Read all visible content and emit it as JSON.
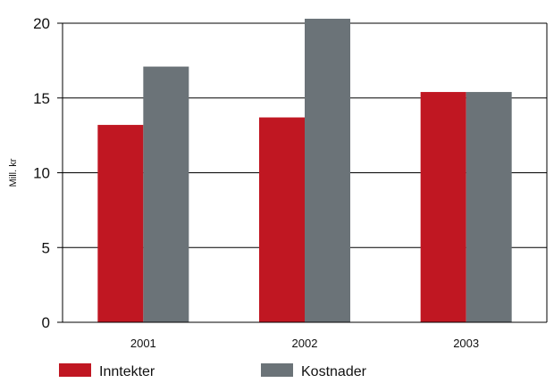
{
  "chart_data": {
    "type": "bar",
    "title": "",
    "xlabel": "",
    "ylabel": "Mill. kr",
    "categories": [
      "2001",
      "2002",
      "2003"
    ],
    "series": [
      {
        "name": "Inntekter",
        "values": [
          13.2,
          13.7,
          15.4
        ],
        "color": "#c01722"
      },
      {
        "name": "Kostnader",
        "values": [
          17.1,
          20.3,
          15.4
        ],
        "color": "#6b7378"
      }
    ],
    "ylim": [
      0,
      20
    ],
    "yticks": [
      "0",
      "5",
      "10",
      "15",
      "20"
    ],
    "grid": true,
    "legend_position": "bottom"
  }
}
